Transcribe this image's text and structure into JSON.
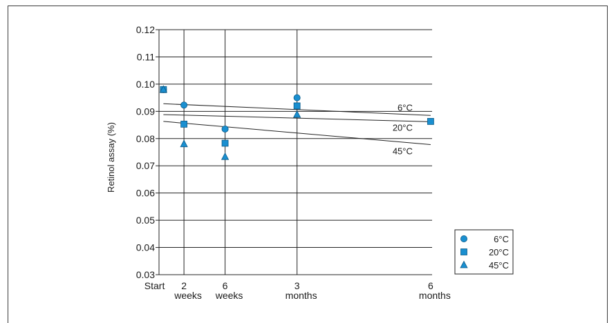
{
  "chart_data": {
    "type": "scatter",
    "ylabel": "Retinol assay (%)",
    "ylim": [
      0.03,
      0.12
    ],
    "yticks": [
      "0.03",
      "0.04",
      "0.05",
      "0.06",
      "0.07",
      "0.08",
      "0.09",
      "0.10",
      "0.11",
      "0.12"
    ],
    "xlim_days": [
      -3,
      183
    ],
    "xticks": [
      {
        "lines": [
          "Start"
        ],
        "day": 0
      },
      {
        "lines": [
          "2",
          "weeks"
        ],
        "day": 14
      },
      {
        "lines": [
          "6",
          "weeks"
        ],
        "day": 42
      },
      {
        "lines": [
          "3",
          "months"
        ],
        "day": 91
      },
      {
        "lines": [
          "6",
          "months"
        ],
        "day": 182
      }
    ],
    "grid": {
      "horizontal": true,
      "vertical_at_days": [
        14,
        42,
        91
      ]
    },
    "marker_color": "#1a8fd0",
    "series": [
      {
        "name": "6°C",
        "marker": "circle",
        "points": [
          [
            0,
            0.098
          ],
          [
            14,
            0.0923
          ],
          [
            42,
            0.0835
          ],
          [
            91,
            0.095
          ]
        ],
        "trend": [
          [
            0,
            0.0928
          ],
          [
            182,
            0.0885
          ]
        ],
        "trend_label": "6°C"
      },
      {
        "name": "20°C",
        "marker": "square",
        "points": [
          [
            0,
            0.098
          ],
          [
            14,
            0.0853
          ],
          [
            42,
            0.0783
          ],
          [
            91,
            0.092
          ],
          [
            182,
            0.0863
          ]
        ],
        "trend": [
          [
            0,
            0.0888
          ],
          [
            182,
            0.0862
          ]
        ],
        "trend_label": "20°C"
      },
      {
        "name": "45°C",
        "marker": "triangle",
        "points": [
          [
            0,
            0.098
          ],
          [
            14,
            0.078
          ],
          [
            42,
            0.0733
          ],
          [
            91,
            0.0888
          ]
        ],
        "trend": [
          [
            0,
            0.0863
          ],
          [
            182,
            0.0778
          ]
        ],
        "trend_label": "45°C"
      }
    ],
    "legend": {
      "placement": "bottom-right"
    }
  }
}
